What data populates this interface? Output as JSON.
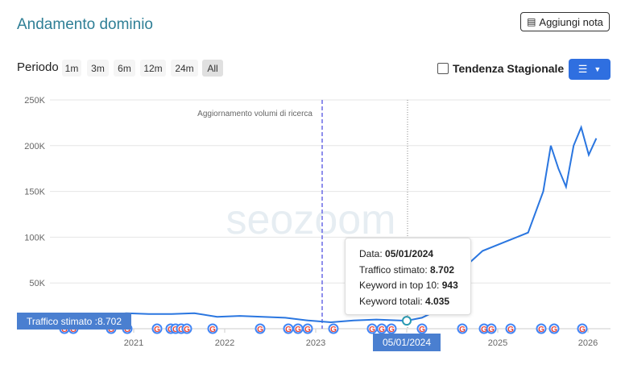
{
  "header": {
    "title": "Andamento dominio",
    "note_button_label": "Aggiungi nota",
    "note_icon": "notes-icon"
  },
  "period": {
    "label": "Periodo",
    "options": [
      "1m",
      "3m",
      "6m",
      "12m",
      "24m",
      "All"
    ],
    "selected": "All"
  },
  "seasonal_trend": {
    "label": "Tendenza Stagionale",
    "checked": false
  },
  "menu_button": {
    "icon": "hamburger-menu-icon",
    "caret_icon": "chevron-down-icon",
    "color": "#2f6fe0"
  },
  "watermark": "seozoom",
  "chart_data": {
    "type": "line",
    "ylim": [
      0,
      250000
    ],
    "yticks": [
      "250K",
      "200K",
      "150K",
      "100K",
      "50K"
    ],
    "xticks": [
      "2021",
      "2022",
      "2023",
      "2024",
      "2025",
      "2026"
    ],
    "line_color": "#2a76e0",
    "annotation": "Aggiornamento volumi di ricerca",
    "series": [
      {
        "values": [
          [
            "2020-06",
            9000
          ],
          [
            "2020-09",
            14000
          ],
          [
            "2020-12",
            17000
          ],
          [
            "2021-03",
            16000
          ],
          [
            "2021-06",
            16000
          ],
          [
            "2021-09",
            17000
          ],
          [
            "2021-12",
            13000
          ],
          [
            "2022-03",
            14000
          ],
          [
            "2022-06",
            13000
          ],
          [
            "2022-09",
            12000
          ],
          [
            "2022-12",
            9000
          ],
          [
            "2023-03",
            7000
          ],
          [
            "2023-06",
            9000
          ],
          [
            "2023-09",
            10000
          ],
          [
            "2023-12",
            9000
          ],
          [
            "2024-01",
            8702
          ],
          [
            "2024-03",
            12000
          ],
          [
            "2024-05",
            20000
          ],
          [
            "2024-07",
            40000
          ],
          [
            "2024-09",
            70000
          ],
          [
            "2024-11",
            85000
          ],
          [
            "2025-02",
            95000
          ],
          [
            "2025-05",
            105000
          ],
          [
            "2025-07",
            150000
          ],
          [
            "2025-08",
            200000
          ],
          [
            "2025-09",
            175000
          ],
          [
            "2025-10",
            155000
          ],
          [
            "2025-11",
            200000
          ],
          [
            "2025-12",
            220000
          ],
          [
            "2026-01",
            190000
          ],
          [
            "2026-02",
            208000
          ]
        ]
      }
    ]
  },
  "tooltip": {
    "date_label": "Data:",
    "date_value": "05/01/2024",
    "traffic_label": "Traffico stimato:",
    "traffic_value": "8.702",
    "top10_label": "Keyword in top 10:",
    "top10_value": "943",
    "total_label": "Keyword totali:",
    "total_value": "4.035"
  },
  "crosshair": {
    "traffic_label": "Traffico stimato :8.702",
    "date_label": "05/01/2024"
  }
}
